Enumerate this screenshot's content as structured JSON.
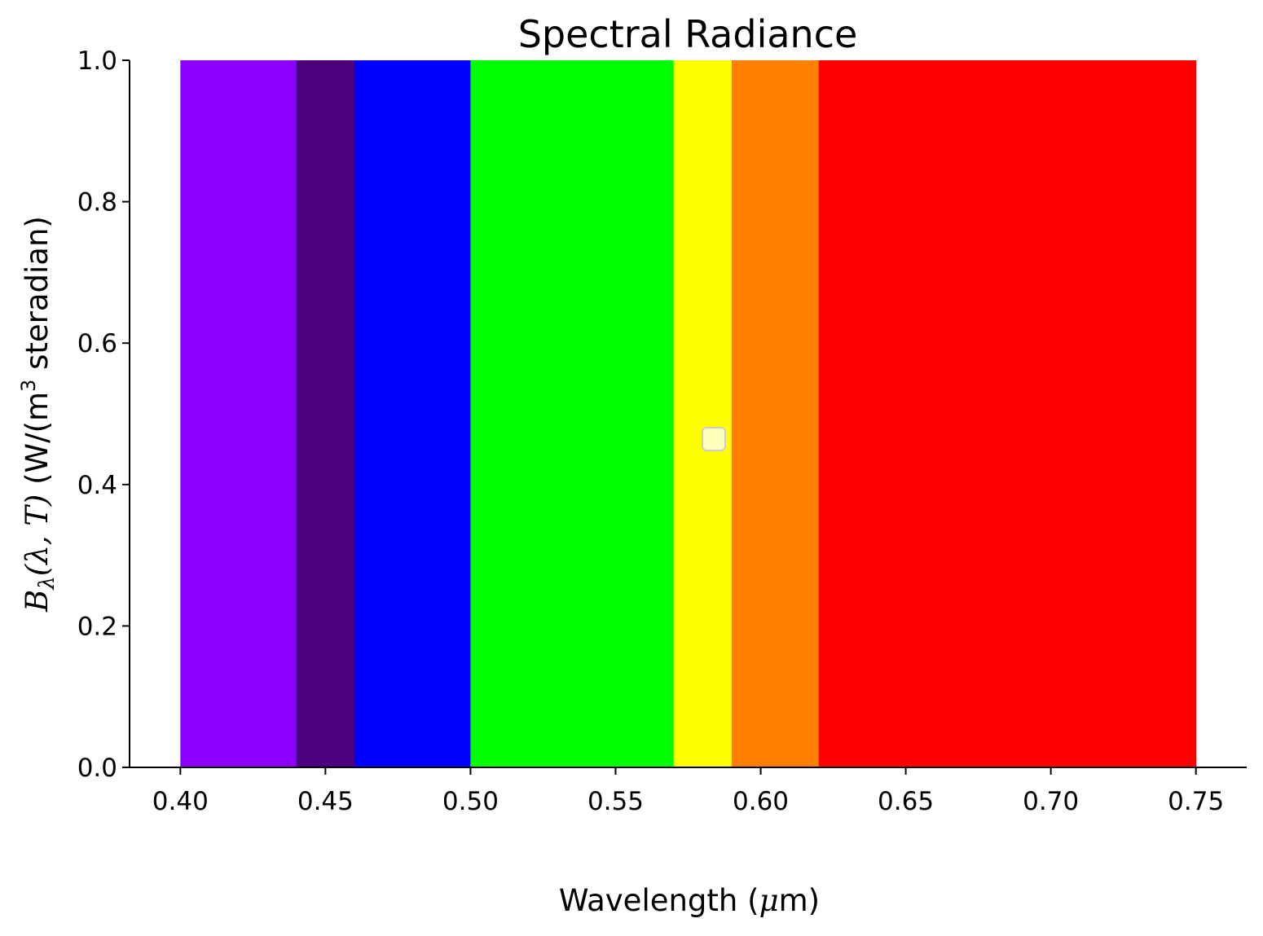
{
  "chart_data": {
    "type": "bar",
    "title": "Spectral Radiance",
    "xlabel": "Wavelength (μm)",
    "xlabel_parts": {
      "pre": "Wavelength (",
      "mu": "μ",
      "post": "m)"
    },
    "ylabel_parts": {
      "B": "B",
      "lambda_sub": "λ",
      "args": "(λ, T)",
      "units_pre": "(W/(m",
      "units_sup": "3",
      "units_post": " steradian)"
    },
    "xlim": [
      0.3825,
      0.7675
    ],
    "ylim": [
      0,
      1.0
    ],
    "x_ticks": [
      "0.40",
      "0.45",
      "0.50",
      "0.55",
      "0.60",
      "0.65",
      "0.70",
      "0.75"
    ],
    "y_ticks": [
      "0.0",
      "0.2",
      "0.4",
      "0.6",
      "0.8",
      "1.0"
    ],
    "bands": [
      {
        "x0": 0.4,
        "x1": 0.44,
        "value": 1.0,
        "color": "#8B00FF"
      },
      {
        "x0": 0.44,
        "x1": 0.46,
        "value": 1.0,
        "color": "#4B0080"
      },
      {
        "x0": 0.46,
        "x1": 0.5,
        "value": 1.0,
        "color": "#0000FF"
      },
      {
        "x0": 0.5,
        "x1": 0.57,
        "value": 1.0,
        "color": "#00FF00"
      },
      {
        "x0": 0.57,
        "x1": 0.59,
        "value": 1.0,
        "color": "#FFFF00"
      },
      {
        "x0": 0.59,
        "x1": 0.62,
        "value": 1.0,
        "color": "#FF7F00"
      },
      {
        "x0": 0.62,
        "x1": 0.75,
        "value": 1.0,
        "color": "#FF0000"
      }
    ],
    "legend": {
      "placement": "center",
      "entries": []
    },
    "grid": false
  }
}
